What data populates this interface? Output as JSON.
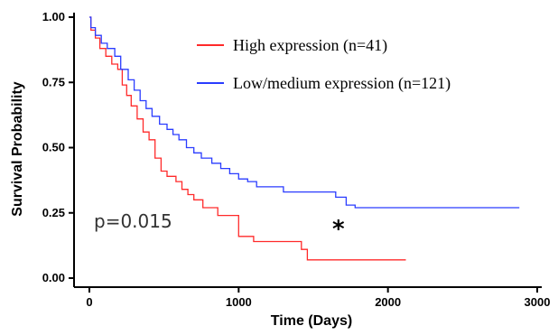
{
  "chart_data": {
    "type": "line",
    "step": true,
    "title": "",
    "xlabel": "Time (Days)",
    "ylabel": "Survival Probability",
    "xlim": [
      0,
      3000
    ],
    "ylim": [
      0,
      1
    ],
    "x_ticks": [
      "0",
      "1000",
      "2000",
      "3000"
    ],
    "y_ticks": [
      "0.00",
      "0.25",
      "0.50",
      "0.75",
      "1.00"
    ],
    "legend_position": "top-right",
    "annotations": {
      "p_value": "p=0.015",
      "significance": "*"
    },
    "series": [
      {
        "name": "High expression (n=41)",
        "color": "#ff2a2a",
        "points": [
          [
            0,
            1.0
          ],
          [
            10,
            0.95
          ],
          [
            40,
            0.92
          ],
          [
            70,
            0.88
          ],
          [
            110,
            0.85
          ],
          [
            150,
            0.82
          ],
          [
            190,
            0.8
          ],
          [
            220,
            0.74
          ],
          [
            250,
            0.7
          ],
          [
            280,
            0.66
          ],
          [
            320,
            0.61
          ],
          [
            360,
            0.56
          ],
          [
            400,
            0.53
          ],
          [
            440,
            0.46
          ],
          [
            480,
            0.41
          ],
          [
            520,
            0.39
          ],
          [
            580,
            0.37
          ],
          [
            620,
            0.34
          ],
          [
            660,
            0.32
          ],
          [
            700,
            0.3
          ],
          [
            760,
            0.27
          ],
          [
            860,
            0.24
          ],
          [
            1000,
            0.16
          ],
          [
            1100,
            0.14
          ],
          [
            1300,
            0.14
          ],
          [
            1420,
            0.11
          ],
          [
            1460,
            0.07
          ],
          [
            1600,
            0.07
          ],
          [
            2120,
            0.07
          ]
        ]
      },
      {
        "name": "Low/medium expression (n=121)",
        "color": "#2a3cff",
        "points": [
          [
            0,
            1.0
          ],
          [
            10,
            0.96
          ],
          [
            40,
            0.93
          ],
          [
            80,
            0.9
          ],
          [
            120,
            0.88
          ],
          [
            170,
            0.85
          ],
          [
            210,
            0.8
          ],
          [
            260,
            0.76
          ],
          [
            300,
            0.72
          ],
          [
            340,
            0.68
          ],
          [
            380,
            0.65
          ],
          [
            420,
            0.62
          ],
          [
            470,
            0.59
          ],
          [
            520,
            0.57
          ],
          [
            560,
            0.55
          ],
          [
            600,
            0.53
          ],
          [
            650,
            0.5
          ],
          [
            700,
            0.48
          ],
          [
            750,
            0.46
          ],
          [
            820,
            0.44
          ],
          [
            880,
            0.42
          ],
          [
            940,
            0.4
          ],
          [
            1000,
            0.38
          ],
          [
            1060,
            0.37
          ],
          [
            1120,
            0.35
          ],
          [
            1240,
            0.35
          ],
          [
            1300,
            0.33
          ],
          [
            1600,
            0.33
          ],
          [
            1650,
            0.31
          ],
          [
            1720,
            0.28
          ],
          [
            1780,
            0.27
          ],
          [
            2880,
            0.27
          ]
        ]
      }
    ]
  }
}
